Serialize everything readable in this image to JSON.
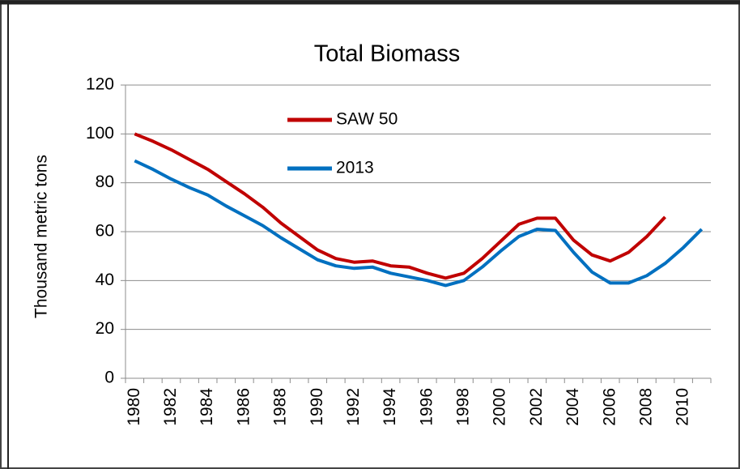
{
  "chart_data": {
    "type": "line",
    "title": "Total Biomass",
    "ylabel": "Thousand metric tons",
    "categories": [
      "1980",
      null,
      "1982",
      null,
      "1984",
      null,
      "1986",
      null,
      "1988",
      null,
      "1990",
      null,
      "1992",
      null,
      "1994",
      null,
      "1996",
      null,
      "1998",
      null,
      "2000",
      null,
      "2002",
      null,
      "2004",
      null,
      "2006",
      null,
      "2008",
      null,
      "2010",
      null
    ],
    "series": [
      {
        "name": "SAW 50",
        "color": "#c00000",
        "values": [
          100,
          97,
          93.5,
          89.5,
          85.5,
          80.5,
          75.5,
          70,
          63.5,
          58,
          52.5,
          49,
          47.5,
          48,
          46,
          45.5,
          43,
          41,
          43,
          49,
          56,
          63,
          65.5,
          65.5,
          56.5,
          50.5,
          48,
          51.5,
          58,
          66,
          null,
          null
        ]
      },
      {
        "name": "2013",
        "color": "#0070c0",
        "values": [
          89,
          85.5,
          81.5,
          78,
          75,
          70.5,
          66.5,
          62.5,
          57.5,
          53,
          48.5,
          46,
          45,
          45.5,
          43,
          41.5,
          40,
          38,
          40,
          45.5,
          52,
          58,
          61,
          60.5,
          51.5,
          43.5,
          39,
          39,
          42,
          47,
          53.5,
          61
        ]
      }
    ],
    "ylim": [
      0,
      120
    ],
    "yticks": [
      0,
      20,
      40,
      60,
      80,
      100,
      120
    ],
    "grid": true,
    "legend": "upper left"
  }
}
